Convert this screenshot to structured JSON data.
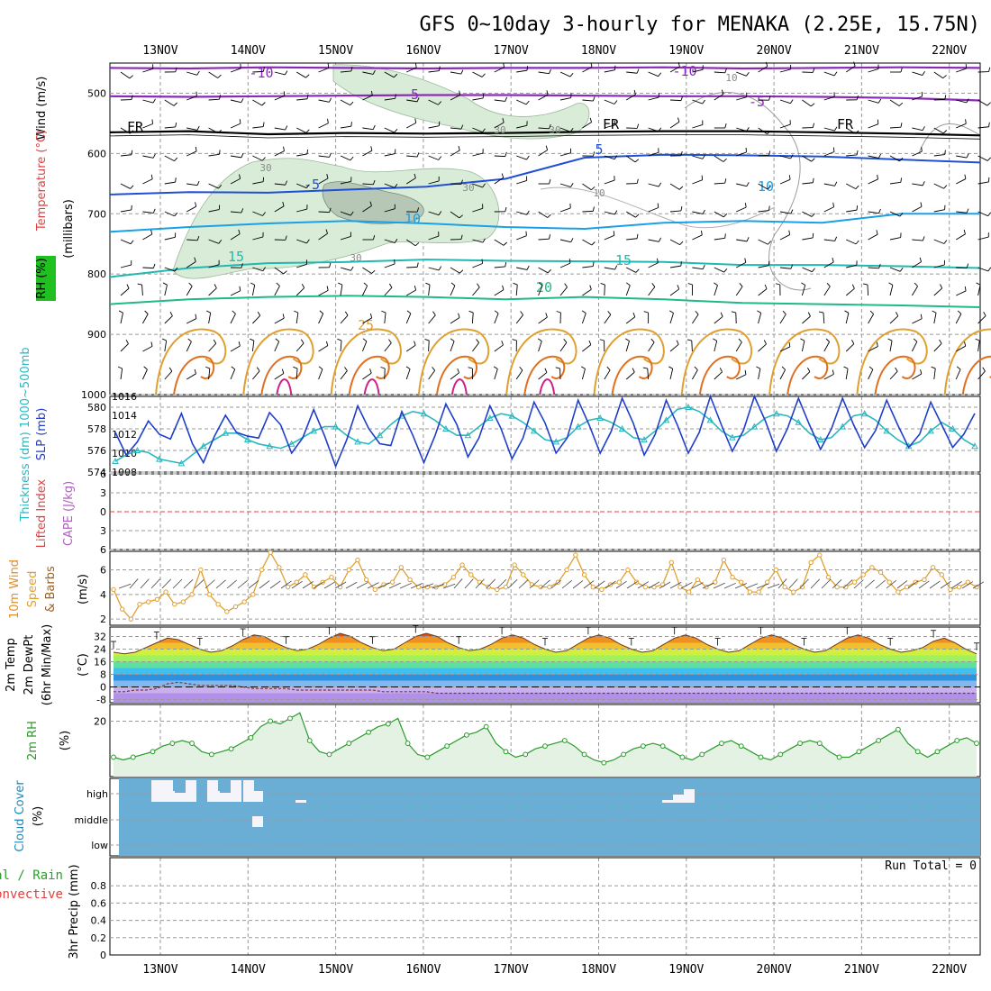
{
  "title": "GFS 0~10day 3-hourly for MENAKA (2.25E, 15.75N)",
  "colors": {
    "temp_purple": "#8a2bb8",
    "temp_black": "#000000",
    "temp_blue": "#1f4fd6",
    "temp_lightblue": "#1aa0e6",
    "temp_teal": "#20b8b0",
    "temp_green": "#1fb98a",
    "temp_orange": "#e0a030",
    "temp_darkorange": "#e07020",
    "temp_magenta": "#d0208a",
    "rh_fill": "#d8ecd8",
    "rh_dark": "#a8b8a8",
    "slp_line": "#1f3fc8",
    "thickness_line": "#2ab8c0",
    "wind_speed": "#e0a030",
    "rh2m_line": "#2a9a2a",
    "rh2m_fill": "#e4f2e4",
    "cloud_bg": "#6aaed6",
    "cloud_white": "#f4f4fa",
    "li_dashed": "#e04040"
  },
  "dates": [
    "13NOV",
    "14NOV",
    "15NOV",
    "16NOV",
    "17NOV",
    "18NOV",
    "19NOV",
    "20NOV",
    "21NOV",
    "22NOV"
  ],
  "chart_data": [
    {
      "type": "line",
      "panel": "upper-air",
      "title": "GFS 0~10day 3-hourly for MENAKA (2.25E, 15.75N)",
      "ylabel": "(millibars)",
      "side_labels": [
        "Wind (m/s)",
        "Temperature (°C)",
        "RH (%)"
      ],
      "ylim": [
        1000,
        450
      ],
      "y_ticks": [
        "500",
        "600",
        "700",
        "800",
        "900",
        "1000"
      ],
      "contour_labels": {
        "purple": [
          "-10",
          "-10",
          "-5",
          "-5",
          "-10"
        ],
        "freezing": [
          "FR",
          "FR",
          "FR"
        ],
        "blue": [
          "-5",
          "5"
        ],
        "lightblue": [
          "10",
          "10"
        ],
        "teal": [
          "15",
          "15"
        ],
        "green": [
          "20"
        ],
        "orange": [
          "25"
        ],
        "rh": [
          "30",
          "30",
          "30",
          "30",
          "30",
          "10",
          "10"
        ]
      },
      "series": [
        {
          "name": "-10",
          "values": [
            458,
            459,
            457,
            458,
            459,
            458,
            458,
            457,
            459,
            458,
            457,
            458
          ]
        },
        {
          "name": "-5",
          "values": [
            505,
            506,
            505,
            504,
            503,
            503,
            504,
            505,
            505,
            506,
            508,
            512
          ]
        },
        {
          "name": "0",
          "values": [
            565,
            563,
            568,
            566,
            567,
            566,
            564,
            563,
            563,
            565,
            567,
            570
          ]
        },
        {
          "name": "-5",
          "values": [
            668,
            664,
            665,
            660,
            655,
            642,
            607,
            602,
            603,
            605,
            610,
            615
          ]
        },
        {
          "name": "10",
          "values": [
            730,
            722,
            716,
            712,
            716,
            722,
            725,
            715,
            712,
            715,
            700,
            700
          ]
        },
        {
          "name": "15",
          "values": [
            805,
            790,
            782,
            780,
            776,
            778,
            779,
            780,
            785,
            785,
            787,
            790
          ]
        },
        {
          "name": "20",
          "values": [
            850,
            842,
            838,
            836,
            838,
            842,
            838,
            842,
            848,
            850,
            852,
            855
          ]
        }
      ],
      "x": [
        "13NOV 00",
        "13NOV 12",
        "14NOV 00",
        "14NOV 12",
        "15NOV 00",
        "16NOV 00",
        "17NOV 00",
        "18NOV 00",
        "19NOV 00",
        "20NOV 00",
        "21NOV 00",
        "22NOV 06"
      ]
    },
    {
      "type": "line",
      "panel": "slp-thickness",
      "ylabel": "Thickness (dm) 1000~500mb",
      "y2label": "SLP (mb)",
      "ylim": [
        574,
        581
      ],
      "y_ticks": [
        "574",
        "576",
        "578",
        "580"
      ],
      "y2lim": [
        1008,
        1016
      ],
      "y2_ticks": [
        "1008",
        "1010",
        "1012",
        "1014",
        "1016"
      ],
      "series": [
        {
          "name": "SLP (mb)",
          "values": [
            1012.2,
            1009.8,
            1011.2,
            1013.4,
            1012.0,
            1011.5,
            1014.2,
            1011.0,
            1009.0,
            1011.8,
            1014.0,
            1012.2,
            1011.8,
            1011.6,
            1014.3,
            1013.0,
            1010.0,
            1011.6,
            1014.6,
            1011.8,
            1008.6,
            1011.4,
            1015.0,
            1012.6,
            1011.0,
            1010.8,
            1014.4,
            1011.9,
            1009.0,
            1011.8,
            1015.2,
            1013.0,
            1009.6,
            1011.6,
            1015.0,
            1012.6,
            1009.4,
            1011.6,
            1015.4,
            1013.2,
            1010.0,
            1011.6,
            1015.6,
            1013.0,
            1010.0,
            1012.3,
            1015.8,
            1013.2,
            1009.8,
            1012.0,
            1015.6,
            1013.0,
            1010.0,
            1012.2,
            1016.0,
            1013.0,
            1010.2,
            1012.4,
            1016.0,
            1013.4,
            1010.2,
            1012.6,
            1015.8,
            1013.0,
            1010.4,
            1012.6,
            1015.8,
            1013.0,
            1010.6,
            1012.4,
            1015.6,
            1013.0,
            1010.6,
            1012.0,
            1015.4,
            1013.0,
            1010.6,
            1012.0,
            1014.2
          ]
        },
        {
          "name": "Thickness 1000~500mb (dm)",
          "values": [
            575.0,
            575.6,
            576.0,
            575.8,
            575.2,
            575.0,
            574.8,
            575.6,
            576.4,
            577.0,
            577.6,
            577.6,
            577.0,
            576.6,
            576.4,
            576.2,
            576.6,
            577.2,
            577.8,
            578.2,
            578.2,
            577.4,
            576.8,
            576.6,
            577.4,
            578.4,
            579.2,
            579.6,
            579.4,
            578.8,
            578.0,
            577.4,
            577.4,
            578.2,
            579.0,
            579.4,
            579.2,
            578.6,
            577.8,
            577.0,
            576.8,
            577.2,
            578.2,
            578.8,
            579.0,
            578.6,
            578.0,
            577.2,
            577.0,
            577.8,
            578.8,
            579.8,
            580.0,
            579.6,
            578.8,
            577.8,
            577.2,
            577.4,
            578.2,
            579.0,
            579.4,
            579.2,
            578.6,
            577.6,
            577.0,
            577.2,
            578.2,
            579.2,
            579.4,
            578.8,
            577.8,
            577.0,
            576.4,
            576.8,
            577.8,
            578.6,
            578.0,
            577.0,
            576.4
          ]
        }
      ]
    },
    {
      "type": "line",
      "panel": "lifted-index-cape",
      "ylabel": "Lifted Index",
      "y2label": "CAPE (J/kg)",
      "ylim": [
        -6,
        6
      ],
      "y_ticks": [
        "-6",
        "-3",
        "0",
        "3",
        "6"
      ],
      "series": []
    },
    {
      "type": "line",
      "panel": "10m-wind",
      "ylabel": "10m Wind Speed & Barbs (m/s)",
      "ylim": [
        1.5,
        7.5
      ],
      "y_ticks": [
        "2",
        "4",
        "6"
      ],
      "series": [
        {
          "name": "10m Wind Speed",
          "values": [
            4.4,
            2.8,
            2.0,
            3.2,
            3.4,
            3.6,
            4.2,
            3.2,
            3.4,
            4.0,
            6.0,
            4.0,
            3.2,
            2.6,
            3.0,
            3.4,
            4.0,
            6.0,
            7.4,
            6.2,
            4.6,
            5.0,
            5.6,
            4.6,
            5.0,
            5.4,
            4.6,
            6.0,
            6.8,
            5.2,
            4.4,
            4.8,
            5.0,
            6.2,
            5.2,
            4.6,
            4.6,
            4.6,
            4.8,
            5.4,
            6.4,
            5.6,
            5.0,
            4.6,
            4.4,
            4.6,
            6.4,
            5.6,
            4.8,
            4.6,
            4.6,
            5.0,
            6.0,
            7.2,
            5.6,
            4.6,
            4.4,
            4.8,
            5.0,
            6.0,
            5.0,
            4.6,
            4.6,
            4.8,
            6.6,
            4.6,
            4.2,
            5.2,
            4.6,
            5.0,
            6.8,
            5.4,
            5.0,
            4.2,
            4.2,
            5.0,
            6.0,
            4.6,
            4.2,
            4.6,
            6.6,
            7.2,
            5.4,
            4.6,
            4.6,
            5.0,
            5.6,
            6.2,
            5.8,
            5.0,
            4.2,
            4.6,
            5.0,
            5.2,
            6.2,
            5.6,
            4.4,
            4.6,
            5.0,
            4.6
          ]
        }
      ]
    },
    {
      "type": "area",
      "panel": "2m-temp",
      "ylabel": "2m Temp / 2m DewPt (6hr Min/Max) (°C)",
      "ylim": [
        -10,
        38
      ],
      "y_ticks": [
        "-8",
        "0",
        "8",
        "16",
        "24",
        "32"
      ],
      "series": [
        {
          "name": "2m Temp",
          "values": [
            22,
            21,
            22,
            25,
            28,
            31,
            30,
            27,
            24,
            22,
            23,
            26,
            30,
            33,
            32,
            28,
            25,
            23,
            24,
            27,
            31,
            34,
            32,
            28,
            25,
            23,
            24,
            28,
            32,
            34,
            32,
            28,
            25,
            23,
            24,
            27,
            31,
            33,
            31,
            27,
            24,
            22,
            23,
            27,
            31,
            33,
            31,
            27,
            24,
            22,
            23,
            27,
            31,
            33,
            31,
            27,
            24,
            22,
            23,
            27,
            31,
            33,
            31,
            27,
            24,
            22,
            23,
            27,
            31,
            33,
            31,
            27,
            24,
            22,
            23,
            25,
            29,
            31,
            28,
            24,
            21
          ]
        },
        {
          "name": "2m DewPt",
          "values": [
            -3,
            -3,
            -2,
            -2,
            -1,
            2,
            3,
            2,
            1,
            1,
            1,
            1,
            0,
            -1,
            -1,
            -1,
            -1,
            -2,
            -2,
            -2,
            -2,
            -2,
            -2,
            -2,
            -2,
            -3,
            -3,
            -3,
            -3,
            -3,
            -4,
            -4,
            -4,
            -4,
            -4,
            -4,
            -4,
            -4,
            -4,
            -4,
            -4,
            -4,
            -4,
            -4,
            -4,
            -4,
            -4,
            -4,
            -4,
            -4,
            -4,
            -4,
            -4,
            -4,
            -4,
            -4,
            -4,
            -4,
            -4,
            -4,
            -4,
            -4,
            -4,
            -4,
            -4,
            -4,
            -4,
            -4,
            -4,
            -4,
            -4,
            -4,
            -4,
            -4,
            -4,
            -4,
            -4,
            -4,
            -4,
            -4,
            -4
          ]
        }
      ]
    },
    {
      "type": "area",
      "panel": "2m-rh",
      "ylabel": "2m RH (%)",
      "ylim": [
        0,
        26
      ],
      "y_ticks": [
        "20"
      ],
      "series": [
        {
          "name": "2m RH",
          "values": [
            7,
            6,
            7,
            8,
            9,
            11,
            12,
            13,
            12,
            9,
            8,
            9,
            10,
            12,
            14,
            18,
            20,
            19,
            21,
            23,
            13,
            9,
            8,
            10,
            12,
            14,
            16,
            18,
            19,
            21,
            12,
            8,
            7,
            9,
            11,
            13,
            15,
            16,
            18,
            12,
            9,
            7,
            8,
            10,
            11,
            12,
            13,
            11,
            8,
            6,
            5,
            6,
            8,
            10,
            11,
            12,
            11,
            9,
            7,
            6,
            8,
            10,
            12,
            13,
            11,
            9,
            7,
            6,
            8,
            10,
            12,
            13,
            12,
            9,
            7,
            7,
            9,
            11,
            13,
            15,
            17,
            12,
            9,
            7,
            9,
            11,
            13,
            14,
            12
          ]
        }
      ]
    },
    {
      "type": "heatmap",
      "panel": "cloud-cover",
      "ylabel": "Cloud Cover (%)",
      "y_ticks": [
        "high",
        "middle",
        "low"
      ],
      "series": [
        {
          "name": "high",
          "values": [
            [
              1.5,
              3
            ],
            [
              3,
              5
            ],
            [
              5.5,
              9
            ],
            [
              9,
              11
            ],
            [
              21,
              22.2
            ],
            [
              65,
              69
            ]
          ]
        },
        {
          "name": "middle",
          "values": [
            [
              16.5,
              17.5
            ]
          ]
        }
      ]
    },
    {
      "type": "bar",
      "panel": "precip",
      "ylabel": "3hr Precip (mm)",
      "side_labels": [
        "Total / Rain",
        "Convective"
      ],
      "annotation": "Run Total = 0",
      "ylim": [
        0,
        1
      ],
      "y_ticks": [
        "0",
        "0.2",
        "0.4",
        "0.6",
        "0.8"
      ],
      "series": []
    }
  ]
}
